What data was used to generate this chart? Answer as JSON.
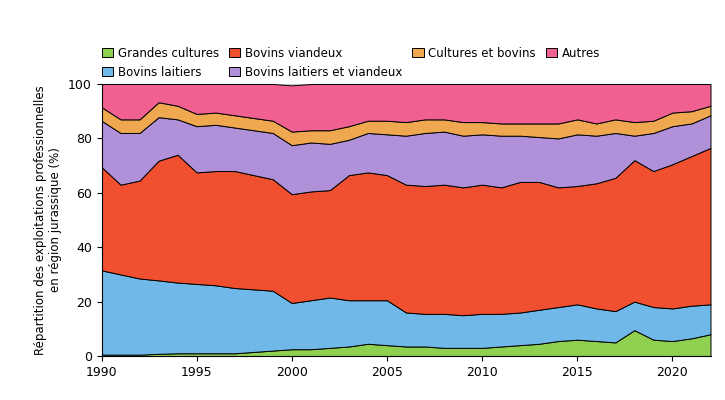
{
  "years": [
    1990,
    1991,
    1992,
    1993,
    1994,
    1995,
    1996,
    1997,
    1998,
    1999,
    2000,
    2001,
    2002,
    2003,
    2004,
    2005,
    2006,
    2007,
    2008,
    2009,
    2010,
    2011,
    2012,
    2013,
    2014,
    2015,
    2016,
    2017,
    2018,
    2019,
    2020,
    2021,
    2022
  ],
  "grandes_cultures": [
    0.5,
    0.5,
    0.5,
    0.8,
    1.0,
    1.0,
    1.0,
    1.0,
    1.5,
    2.0,
    2.5,
    2.5,
    3.0,
    3.5,
    4.5,
    4.0,
    3.5,
    3.5,
    3.0,
    3.0,
    3.0,
    3.5,
    4.0,
    4.5,
    5.5,
    6.0,
    5.5,
    5.0,
    9.5,
    6.0,
    5.5,
    6.5,
    8.0
  ],
  "bovins_laitiers": [
    31.0,
    29.5,
    28.0,
    27.0,
    26.0,
    25.5,
    25.0,
    24.0,
    23.0,
    22.0,
    17.0,
    18.0,
    18.5,
    17.0,
    16.0,
    16.5,
    12.5,
    12.0,
    12.5,
    12.0,
    12.5,
    12.0,
    12.0,
    12.5,
    12.5,
    13.0,
    12.0,
    11.5,
    10.5,
    12.0,
    12.0,
    12.0,
    11.0
  ],
  "bovins_viandeux": [
    38.0,
    33.0,
    36.0,
    44.0,
    47.0,
    41.0,
    42.0,
    43.0,
    42.0,
    41.0,
    40.0,
    40.0,
    39.5,
    46.0,
    47.0,
    46.0,
    47.0,
    47.0,
    47.5,
    47.0,
    47.5,
    46.5,
    48.0,
    47.0,
    44.0,
    43.5,
    46.0,
    49.0,
    52.0,
    50.0,
    53.0,
    55.0,
    57.5
  ],
  "bovins_laitiers_viandeux": [
    17.0,
    19.0,
    17.5,
    16.0,
    13.0,
    17.0,
    17.0,
    16.0,
    16.5,
    17.0,
    18.0,
    18.0,
    17.0,
    13.0,
    14.5,
    15.0,
    18.0,
    19.5,
    19.5,
    19.0,
    18.5,
    19.0,
    17.0,
    16.5,
    18.0,
    19.0,
    17.5,
    16.5,
    9.0,
    14.0,
    14.0,
    12.0,
    12.0
  ],
  "cultures_bovins": [
    5.0,
    5.0,
    5.0,
    5.5,
    5.0,
    4.5,
    4.5,
    4.5,
    4.5,
    4.5,
    5.0,
    4.5,
    5.0,
    5.0,
    4.5,
    5.0,
    5.0,
    5.0,
    4.5,
    5.0,
    4.5,
    4.5,
    4.5,
    5.0,
    5.5,
    5.5,
    4.5,
    5.0,
    5.0,
    4.5,
    5.0,
    4.5,
    3.5
  ],
  "autres": [
    8.5,
    13.0,
    13.0,
    6.7,
    8.0,
    11.0,
    10.5,
    11.5,
    12.5,
    13.5,
    17.0,
    17.0,
    17.0,
    15.5,
    13.5,
    13.5,
    14.0,
    13.0,
    13.0,
    14.0,
    14.0,
    14.5,
    14.5,
    14.5,
    14.5,
    13.0,
    14.5,
    13.0,
    14.0,
    13.5,
    10.5,
    10.0,
    8.0
  ],
  "colors": {
    "grandes_cultures": "#90d050",
    "bovins_laitiers": "#70b8e8",
    "bovins_viandeux": "#f05030",
    "bovins_laitiers_viandeux": "#b090d8",
    "cultures_bovins": "#f0a850",
    "autres": "#f06090"
  },
  "labels": {
    "grandes_cultures": "Grandes cultures",
    "bovins_laitiers": "Bovins laitiers",
    "bovins_viandeux": "Bovins viandeux",
    "bovins_laitiers_viandeux": "Bovins laitiers et viandeux",
    "cultures_bovins": "Cultures et bovins",
    "autres": "Autres"
  },
  "ylabel": "Répartition des exploitations professionnelles\nen région jurassique (%)",
  "ylim": [
    0,
    100
  ],
  "xlim": [
    1990,
    2022
  ],
  "xticks": [
    1990,
    1995,
    2000,
    2005,
    2010,
    2015,
    2020
  ],
  "yticks": [
    0,
    20,
    40,
    60,
    80,
    100
  ],
  "background_color": "#ffffff",
  "grid_color": "#aaaaaa",
  "linewidth": 0.7
}
